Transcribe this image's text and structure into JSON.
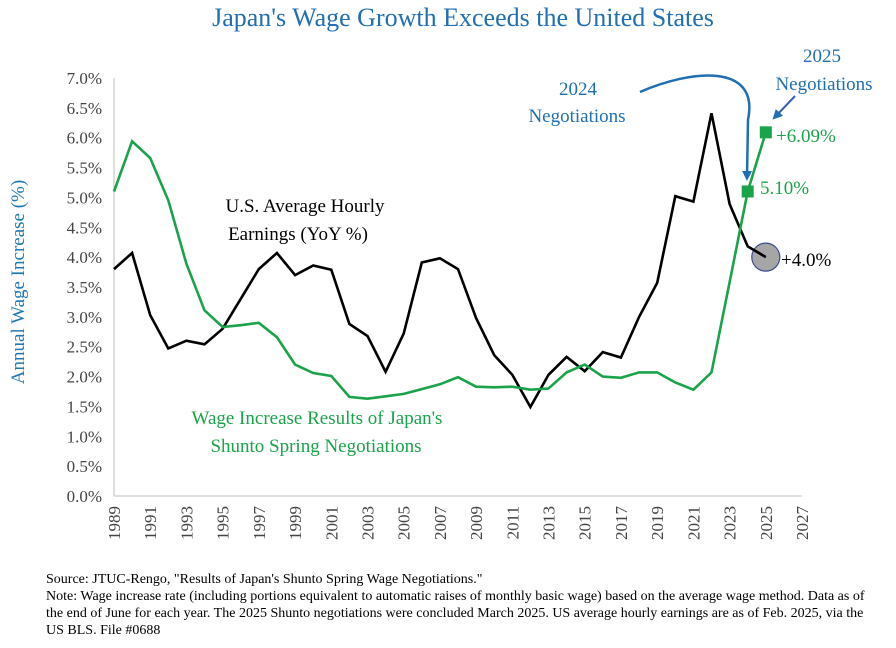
{
  "chart_data": {
    "type": "line",
    "title": "Japan's Wage Growth Exceeds the United States",
    "ylabel": "Annual Wage Increase (%)",
    "xlabel": "",
    "ylim": [
      0,
      7
    ],
    "xlim": [
      1989,
      2027
    ],
    "y_ticks": [
      "0.0%",
      "0.5%",
      "1.0%",
      "1.5%",
      "2.0%",
      "2.5%",
      "3.0%",
      "3.5%",
      "4.0%",
      "4.5%",
      "5.0%",
      "5.5%",
      "6.0%",
      "6.5%",
      "7.0%"
    ],
    "x_ticks": [
      "1989",
      "1991",
      "1993",
      "1995",
      "1997",
      "1999",
      "2001",
      "2003",
      "2005",
      "2007",
      "2009",
      "2011",
      "2013",
      "2015",
      "2017",
      "2019",
      "2021",
      "2023",
      "2025",
      "2027"
    ],
    "grid": false,
    "series": [
      {
        "name": "U.S. Average Hourly Earnings (YoY %)",
        "color": "#000000",
        "x": [
          1989,
          1990,
          1991,
          1992,
          1993,
          1994,
          1995,
          1996,
          1997,
          1998,
          1999,
          2000,
          2001,
          2002,
          2003,
          2004,
          2005,
          2006,
          2007,
          2008,
          2009,
          2010,
          2011,
          2012,
          2013,
          2014,
          2015,
          2016,
          2017,
          2018,
          2019,
          2020,
          2021,
          2022,
          2023,
          2024,
          2025
        ],
        "values": [
          3.8,
          4.07,
          3.03,
          2.47,
          2.6,
          2.54,
          2.8,
          3.3,
          3.8,
          4.07,
          3.7,
          3.86,
          3.79,
          2.88,
          2.68,
          2.08,
          2.72,
          3.91,
          3.98,
          3.8,
          2.98,
          2.36,
          2.03,
          1.49,
          2.03,
          2.33,
          2.09,
          2.41,
          2.32,
          3.0,
          3.57,
          5.02,
          4.93,
          6.41,
          4.89,
          4.18,
          4.0
        ]
      },
      {
        "name": "Wage Increase Results of Japan's Shunto Spring Negotiations",
        "color": "#1aa34a",
        "x": [
          1989,
          1990,
          1991,
          1992,
          1993,
          1994,
          1995,
          1996,
          1997,
          1998,
          1999,
          2000,
          2001,
          2002,
          2003,
          2004,
          2005,
          2006,
          2007,
          2008,
          2009,
          2010,
          2011,
          2012,
          2013,
          2014,
          2015,
          2016,
          2017,
          2018,
          2019,
          2020,
          2021,
          2022,
          2023,
          2024,
          2025
        ],
        "values": [
          5.1,
          5.94,
          5.66,
          4.95,
          3.89,
          3.11,
          2.83,
          2.86,
          2.9,
          2.66,
          2.2,
          2.06,
          2.01,
          1.66,
          1.63,
          1.67,
          1.71,
          1.79,
          1.87,
          1.99,
          1.83,
          1.82,
          1.83,
          1.78,
          1.8,
          2.07,
          2.2,
          2.0,
          1.98,
          2.07,
          2.07,
          1.9,
          1.78,
          2.07,
          3.58,
          5.1,
          6.09
        ]
      }
    ],
    "annotations": {
      "us_label_line1": "U.S. Average Hourly",
      "us_label_line2": "Earnings (YoY %)",
      "jp_label_line1": "Wage Increase Results of Japan's",
      "jp_label_line2": "Shunto Spring Negotiations",
      "neg2024_line1": "2024",
      "neg2024_line2": "Negotiations",
      "neg2025_line1": "2025",
      "neg2025_line2": "Negotiations",
      "value_2025_jp": "+6.09%",
      "value_2024_jp": "5.10%",
      "value_2025_us": "+4.0%"
    }
  },
  "footer": {
    "source": "Source: JTUC-Rengo, \"Results of Japan's Shunto Spring Wage Negotiations.\"",
    "note": "Note: Wage increase rate (including portions equivalent to automatic raises of monthly basic wage) based on the average wage method. Data as of the end of June for each year. The 2025 Shunto negotiations were concluded March 2025. US average hourly earnings are as of Feb. 2025, via the US BLS.  File #0688"
  }
}
